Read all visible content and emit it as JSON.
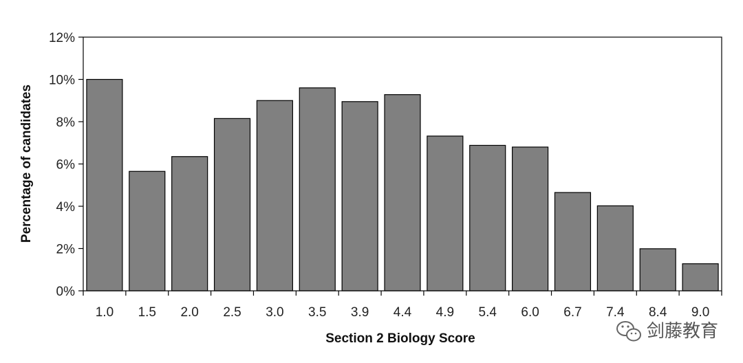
{
  "chart_data": {
    "type": "bar",
    "categories": [
      "1.0",
      "1.5",
      "2.0",
      "2.5",
      "3.0",
      "3.5",
      "3.9",
      "4.4",
      "4.9",
      "5.4",
      "6.0",
      "6.7",
      "7.4",
      "8.4",
      "9.0"
    ],
    "values": [
      10.0,
      5.65,
      6.35,
      8.15,
      9.0,
      9.6,
      8.95,
      9.28,
      7.32,
      6.88,
      6.8,
      4.65,
      4.02,
      1.99,
      1.28
    ],
    "yticks": [
      "0%",
      "2%",
      "4%",
      "6%",
      "8%",
      "10%",
      "12%"
    ],
    "ylim": [
      0,
      12
    ],
    "xlabel": "Section 2 Biology Score",
    "ylabel": "Percentage of candidates",
    "title": "",
    "grid": false,
    "legend": "none",
    "bar_color": "#808080",
    "bar_edge_color": "#000000"
  },
  "watermark": {
    "text": "剑藤教育",
    "icon": "wechat-icon"
  }
}
